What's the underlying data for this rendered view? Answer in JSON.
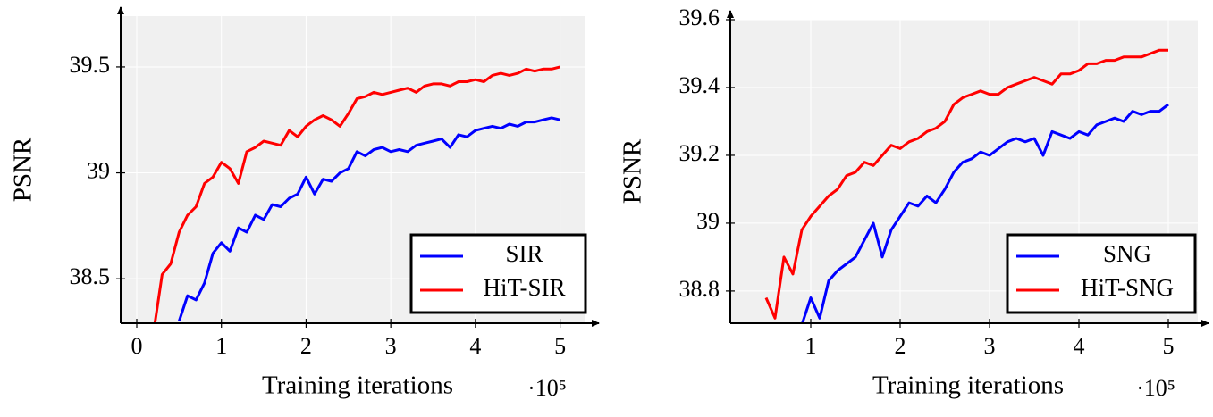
{
  "chart_data": [
    {
      "type": "line",
      "xlabel": "Training iterations",
      "ylabel": "PSNR",
      "x_multiplier": "·10⁵",
      "xlim": [
        -0.19,
        5.3
      ],
      "ylim": [
        38.29,
        39.74
      ],
      "xticks": [
        0,
        1,
        2,
        3,
        4,
        5
      ],
      "yticks": [
        38.5,
        39,
        39.5
      ],
      "grid": true,
      "legend": "lower right",
      "series": [
        {
          "name": "SIR",
          "color": "#0000ff",
          "x": [
            0.5,
            0.6,
            0.7,
            0.8,
            0.9,
            1.0,
            1.1,
            1.2,
            1.3,
            1.4,
            1.5,
            1.6,
            1.7,
            1.8,
            1.9,
            2.0,
            2.1,
            2.2,
            2.3,
            2.4,
            2.5,
            2.6,
            2.7,
            2.8,
            2.9,
            3.0,
            3.1,
            3.2,
            3.3,
            3.4,
            3.5,
            3.6,
            3.7,
            3.8,
            3.9,
            4.0,
            4.1,
            4.2,
            4.3,
            4.4,
            4.5,
            4.6,
            4.7,
            4.8,
            4.9,
            5.0
          ],
          "values": [
            38.3,
            38.42,
            38.4,
            38.48,
            38.62,
            38.67,
            38.63,
            38.74,
            38.72,
            38.8,
            38.78,
            38.85,
            38.84,
            38.88,
            38.9,
            38.98,
            38.9,
            38.97,
            38.96,
            39.0,
            39.02,
            39.1,
            39.08,
            39.11,
            39.12,
            39.1,
            39.11,
            39.1,
            39.13,
            39.14,
            39.15,
            39.16,
            39.12,
            39.18,
            39.17,
            39.2,
            39.21,
            39.22,
            39.21,
            39.23,
            39.22,
            39.24,
            39.24,
            39.25,
            39.26,
            39.25
          ]
        },
        {
          "name": "HiT-SIR",
          "color": "#ff0000",
          "x": [
            0.2,
            0.3,
            0.4,
            0.5,
            0.6,
            0.7,
            0.8,
            0.9,
            1.0,
            1.1,
            1.2,
            1.3,
            1.4,
            1.5,
            1.6,
            1.7,
            1.8,
            1.9,
            2.0,
            2.1,
            2.2,
            2.3,
            2.4,
            2.5,
            2.6,
            2.7,
            2.8,
            2.9,
            3.0,
            3.1,
            3.2,
            3.3,
            3.4,
            3.5,
            3.6,
            3.7,
            3.8,
            3.9,
            4.0,
            4.1,
            4.2,
            4.3,
            4.4,
            4.5,
            4.6,
            4.7,
            4.8,
            4.9,
            5.0
          ],
          "values": [
            38.25,
            38.52,
            38.57,
            38.72,
            38.8,
            38.84,
            38.95,
            38.98,
            39.05,
            39.02,
            38.95,
            39.1,
            39.12,
            39.15,
            39.14,
            39.13,
            39.2,
            39.17,
            39.22,
            39.25,
            39.27,
            39.25,
            39.22,
            39.28,
            39.35,
            39.36,
            39.38,
            39.37,
            39.38,
            39.39,
            39.4,
            39.38,
            39.41,
            39.42,
            39.42,
            39.41,
            39.43,
            39.43,
            39.44,
            39.43,
            39.46,
            39.47,
            39.46,
            39.47,
            39.49,
            39.48,
            39.49,
            39.49,
            39.5
          ]
        }
      ]
    },
    {
      "type": "line",
      "xlabel": "Training iterations",
      "ylabel": "PSNR",
      "x_multiplier": "·10⁵",
      "xlim": [
        0.1,
        5.33
      ],
      "ylim": [
        38.705,
        39.6
      ],
      "xticks": [
        1,
        2,
        3,
        4,
        5
      ],
      "yticks": [
        38.8,
        39,
        39.2,
        39.4,
        39.6
      ],
      "grid": true,
      "legend": "lower right",
      "series": [
        {
          "name": "SNG",
          "color": "#0000ff",
          "x": [
            0.9,
            1.0,
            1.1,
            1.2,
            1.3,
            1.4,
            1.5,
            1.6,
            1.7,
            1.8,
            1.9,
            2.0,
            2.1,
            2.2,
            2.3,
            2.4,
            2.5,
            2.6,
            2.7,
            2.8,
            2.9,
            3.0,
            3.1,
            3.2,
            3.3,
            3.4,
            3.5,
            3.6,
            3.7,
            3.8,
            3.9,
            4.0,
            4.1,
            4.2,
            4.3,
            4.4,
            4.5,
            4.6,
            4.7,
            4.8,
            4.9,
            5.0
          ],
          "values": [
            38.7,
            38.78,
            38.72,
            38.83,
            38.86,
            38.88,
            38.9,
            38.95,
            39.0,
            38.9,
            38.98,
            39.02,
            39.06,
            39.05,
            39.08,
            39.06,
            39.1,
            39.15,
            39.18,
            39.19,
            39.21,
            39.2,
            39.22,
            39.24,
            39.25,
            39.24,
            39.25,
            39.2,
            39.27,
            39.26,
            39.25,
            39.27,
            39.26,
            39.29,
            39.3,
            39.31,
            39.3,
            39.33,
            39.32,
            39.33,
            39.33,
            39.35
          ]
        },
        {
          "name": "HiT-SNG",
          "color": "#ff0000",
          "x": [
            0.5,
            0.6,
            0.7,
            0.8,
            0.9,
            1.0,
            1.1,
            1.2,
            1.3,
            1.4,
            1.5,
            1.6,
            1.7,
            1.8,
            1.9,
            2.0,
            2.1,
            2.2,
            2.3,
            2.4,
            2.5,
            2.6,
            2.7,
            2.8,
            2.9,
            3.0,
            3.1,
            3.2,
            3.3,
            3.4,
            3.5,
            3.6,
            3.7,
            3.8,
            3.9,
            4.0,
            4.1,
            4.2,
            4.3,
            4.4,
            4.5,
            4.6,
            4.7,
            4.8,
            4.9,
            5.0
          ],
          "values": [
            38.78,
            38.72,
            38.9,
            38.85,
            38.98,
            39.02,
            39.05,
            39.08,
            39.1,
            39.14,
            39.15,
            39.18,
            39.17,
            39.2,
            39.23,
            39.22,
            39.24,
            39.25,
            39.27,
            39.28,
            39.3,
            39.35,
            39.37,
            39.38,
            39.39,
            39.38,
            39.38,
            39.4,
            39.41,
            39.42,
            39.43,
            39.42,
            39.41,
            39.44,
            39.44,
            39.45,
            39.47,
            39.47,
            39.48,
            39.48,
            39.49,
            39.49,
            39.49,
            39.5,
            39.51,
            39.51
          ]
        }
      ]
    }
  ]
}
